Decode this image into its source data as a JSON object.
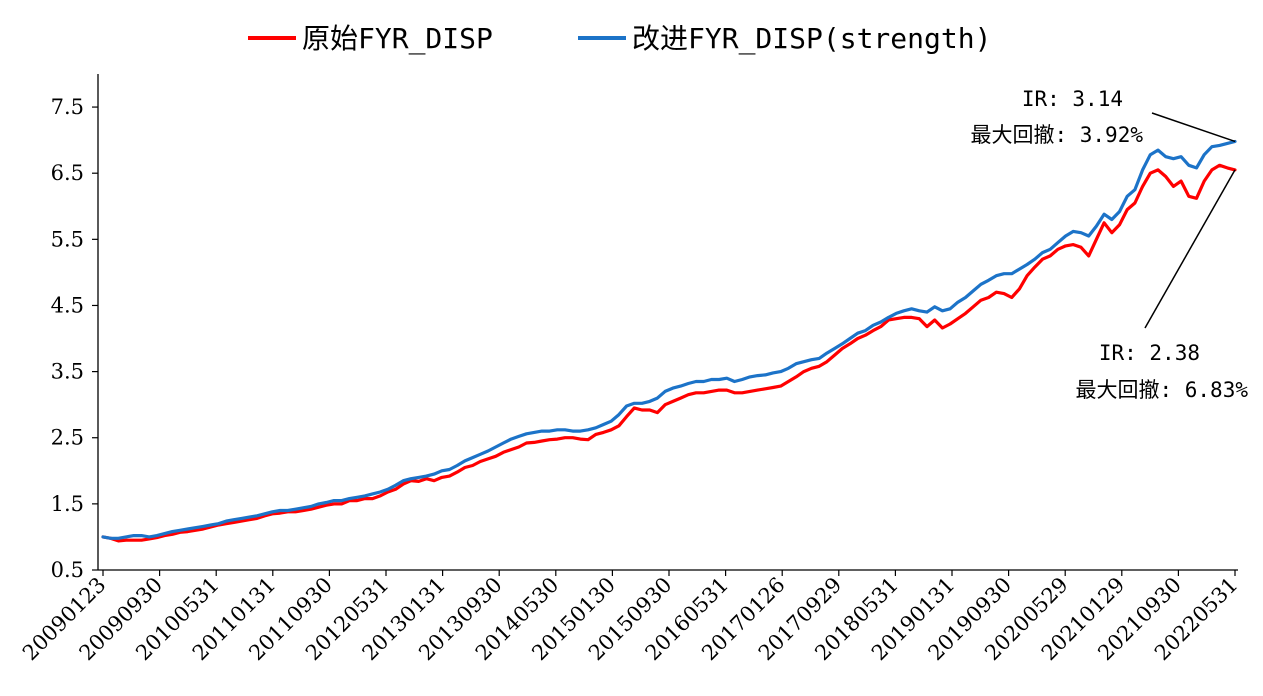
{
  "chart_data": {
    "type": "line",
    "ylim": [
      0.5,
      8.0
    ],
    "y_ticks": [
      "0.5",
      "1.5",
      "2.5",
      "3.5",
      "4.5",
      "5.5",
      "6.5",
      "7.5"
    ],
    "x_tick_labels": [
      "20090123",
      "20090930",
      "20100531",
      "20110131",
      "20110930",
      "20120531",
      "20130131",
      "20130930",
      "20140530",
      "20150130",
      "20150930",
      "20160531",
      "20170126",
      "20170929",
      "20180531",
      "20190131",
      "20190930",
      "20200529",
      "20210129",
      "20210930",
      "20220531"
    ],
    "legend_position": "top-center",
    "grid": false,
    "series": [
      {
        "name": "原始FYR_DISP",
        "color": "#ff0000",
        "values": [
          1.0,
          0.98,
          0.94,
          0.95,
          0.95,
          0.95,
          0.97,
          0.99,
          1.02,
          1.04,
          1.07,
          1.08,
          1.1,
          1.12,
          1.15,
          1.18,
          1.2,
          1.22,
          1.24,
          1.26,
          1.28,
          1.32,
          1.35,
          1.36,
          1.38,
          1.38,
          1.4,
          1.42,
          1.45,
          1.48,
          1.5,
          1.5,
          1.55,
          1.55,
          1.58,
          1.58,
          1.62,
          1.68,
          1.72,
          1.8,
          1.85,
          1.84,
          1.88,
          1.85,
          1.9,
          1.92,
          1.98,
          2.05,
          2.08,
          2.14,
          2.18,
          2.22,
          2.28,
          2.32,
          2.36,
          2.42,
          2.43,
          2.45,
          2.47,
          2.48,
          2.5,
          2.5,
          2.48,
          2.47,
          2.55,
          2.58,
          2.62,
          2.68,
          2.82,
          2.95,
          2.92,
          2.92,
          2.88,
          3.0,
          3.05,
          3.1,
          3.15,
          3.18,
          3.18,
          3.2,
          3.22,
          3.22,
          3.18,
          3.18,
          3.2,
          3.22,
          3.24,
          3.26,
          3.28,
          3.35,
          3.42,
          3.5,
          3.55,
          3.58,
          3.65,
          3.75,
          3.85,
          3.92,
          4.0,
          4.05,
          4.12,
          4.18,
          4.28,
          4.3,
          4.32,
          4.32,
          4.3,
          4.18,
          4.28,
          4.16,
          4.22,
          4.3,
          4.38,
          4.48,
          4.58,
          4.62,
          4.7,
          4.68,
          4.62,
          4.75,
          4.95,
          5.08,
          5.2,
          5.25,
          5.35,
          5.4,
          5.42,
          5.38,
          5.25,
          5.5,
          5.75,
          5.6,
          5.72,
          5.95,
          6.05,
          6.3,
          6.5,
          6.55,
          6.45,
          6.3,
          6.38,
          6.15,
          6.12,
          6.38,
          6.55,
          6.62,
          6.58,
          6.55
        ]
      },
      {
        "name": "改进FYR_DISP(strength)",
        "color": "#1c73c8",
        "values": [
          1.0,
          0.98,
          0.98,
          1.0,
          1.02,
          1.02,
          1.0,
          1.02,
          1.05,
          1.08,
          1.1,
          1.12,
          1.14,
          1.16,
          1.18,
          1.2,
          1.24,
          1.26,
          1.28,
          1.3,
          1.32,
          1.35,
          1.38,
          1.4,
          1.4,
          1.42,
          1.44,
          1.46,
          1.5,
          1.52,
          1.55,
          1.55,
          1.58,
          1.6,
          1.62,
          1.65,
          1.68,
          1.72,
          1.78,
          1.85,
          1.88,
          1.9,
          1.92,
          1.95,
          2.0,
          2.02,
          2.08,
          2.15,
          2.2,
          2.25,
          2.3,
          2.36,
          2.42,
          2.48,
          2.52,
          2.56,
          2.58,
          2.6,
          2.6,
          2.62,
          2.62,
          2.6,
          2.6,
          2.62,
          2.65,
          2.7,
          2.75,
          2.85,
          2.98,
          3.02,
          3.02,
          3.05,
          3.1,
          3.2,
          3.25,
          3.28,
          3.32,
          3.35,
          3.35,
          3.38,
          3.38,
          3.4,
          3.35,
          3.38,
          3.42,
          3.44,
          3.45,
          3.48,
          3.5,
          3.55,
          3.62,
          3.65,
          3.68,
          3.7,
          3.78,
          3.85,
          3.92,
          4.0,
          4.08,
          4.12,
          4.2,
          4.25,
          4.32,
          4.38,
          4.42,
          4.45,
          4.42,
          4.4,
          4.48,
          4.42,
          4.45,
          4.55,
          4.62,
          4.72,
          4.82,
          4.88,
          4.95,
          4.98,
          4.98,
          5.05,
          5.12,
          5.2,
          5.3,
          5.35,
          5.45,
          5.55,
          5.62,
          5.6,
          5.55,
          5.7,
          5.88,
          5.8,
          5.92,
          6.15,
          6.25,
          6.55,
          6.78,
          6.85,
          6.75,
          6.72,
          6.75,
          6.62,
          6.58,
          6.78,
          6.9,
          6.92,
          6.95,
          6.98
        ]
      }
    ],
    "annotations": [
      {
        "lines": [
          "IR: 3.14",
          "最大回撤: 3.92%"
        ],
        "target_series": 1
      },
      {
        "lines": [
          "IR: 2.38",
          "最大回撤: 6.83%"
        ],
        "target_series": 0
      }
    ]
  }
}
